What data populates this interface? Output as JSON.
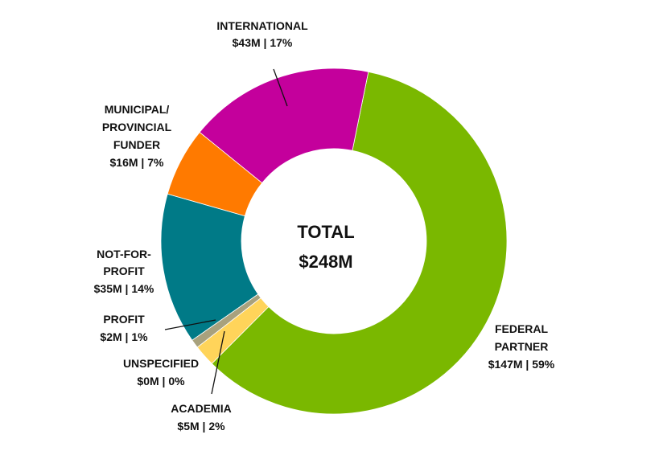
{
  "chart_data": {
    "type": "pie",
    "variant": "donut",
    "center_label": [
      "TOTAL",
      "$248M"
    ],
    "slices": [
      {
        "label": "FEDERAL PARTNER",
        "value": 147,
        "percent": 59,
        "display": "$147M | 59%",
        "color": "#7ab800"
      },
      {
        "label": "ACADEMIA",
        "value": 5,
        "percent": 2,
        "display": "$5M | 2%",
        "color": "#ffd45a"
      },
      {
        "label": "UNSPECIFIED",
        "value": 0,
        "percent": 0,
        "display": "$0M | 0%",
        "color": "#cccccc"
      },
      {
        "label": "PROFIT",
        "value": 2,
        "percent": 1,
        "display": "$2M | 1%",
        "color": "#a8a17d"
      },
      {
        "label": "NOT-FOR-PROFIT",
        "value": 35,
        "percent": 14,
        "display": "$35M | 14%",
        "color": "#007a87"
      },
      {
        "label": "MUNICIPAL/ PROVINCIAL FUNDER",
        "value": 16,
        "percent": 7,
        "display": "$16M | 7%",
        "color": "#ff7a00"
      },
      {
        "label": "INTERNATIONAL",
        "value": 43,
        "percent": 17,
        "display": "$43M | 17%",
        "color": "#c4009c"
      }
    ],
    "label_lines": {
      "federal": [
        "FEDERAL",
        "PARTNER"
      ],
      "academia": [
        "ACADEMIA"
      ],
      "unspecified": [
        "UNSPECIFIED"
      ],
      "profit": [
        "PROFIT"
      ],
      "nfp": [
        "NOT-FOR-",
        "PROFIT"
      ],
      "municipal": [
        "MUNICIPAL/",
        "PROVINCIAL",
        "FUNDER"
      ],
      "international": [
        "INTERNATIONAL"
      ]
    }
  }
}
